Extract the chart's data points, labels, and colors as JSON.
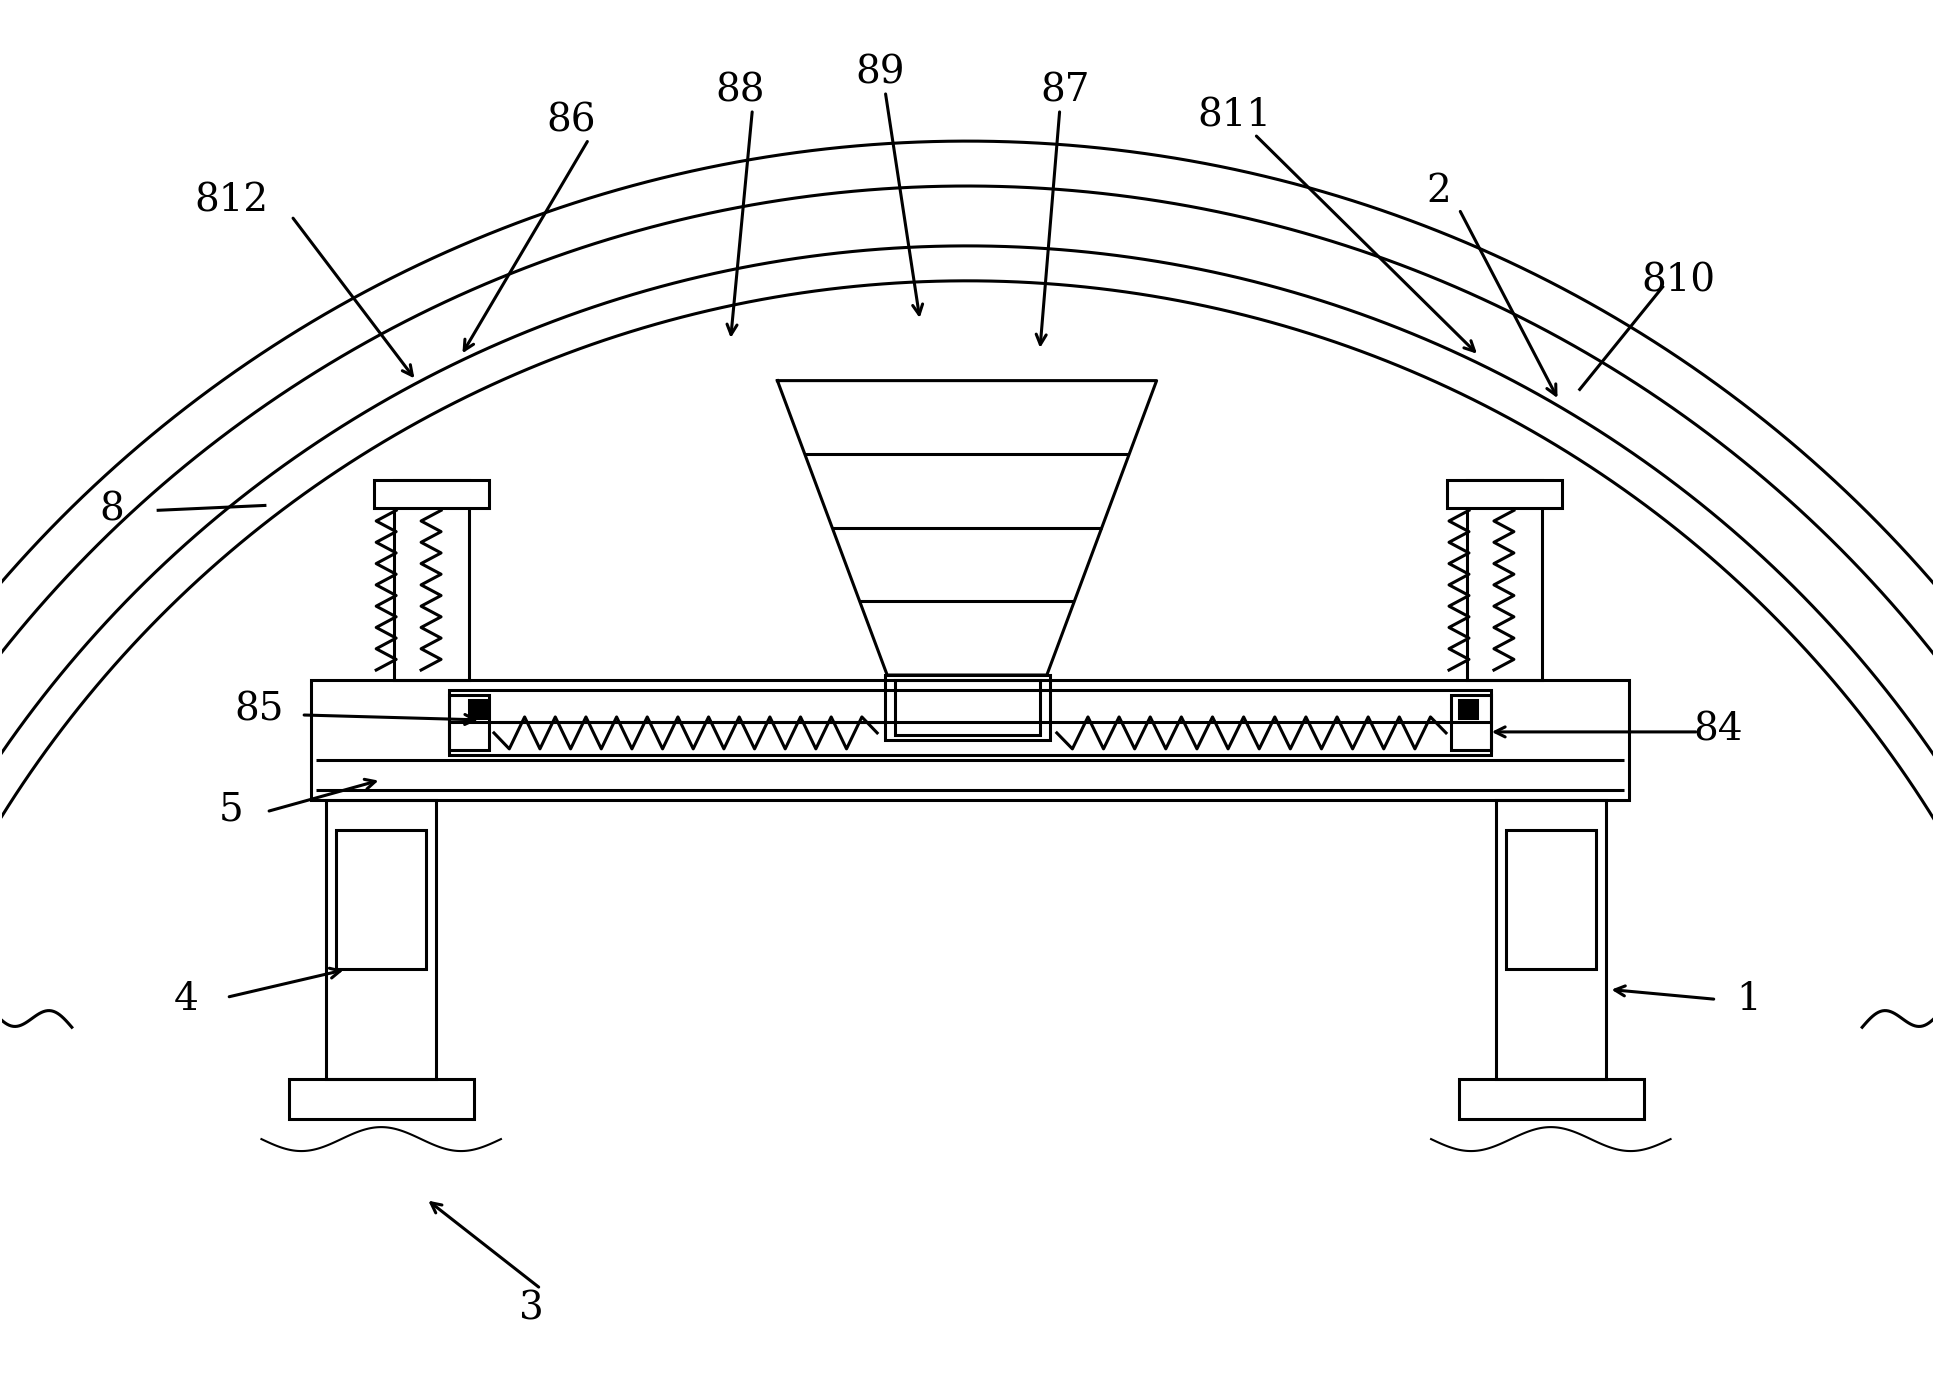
{
  "bg_color": "#ffffff",
  "line_color": "#000000",
  "fig_width": 19.35,
  "fig_height": 13.74,
  "font_size": 28,
  "lw": 2.2
}
